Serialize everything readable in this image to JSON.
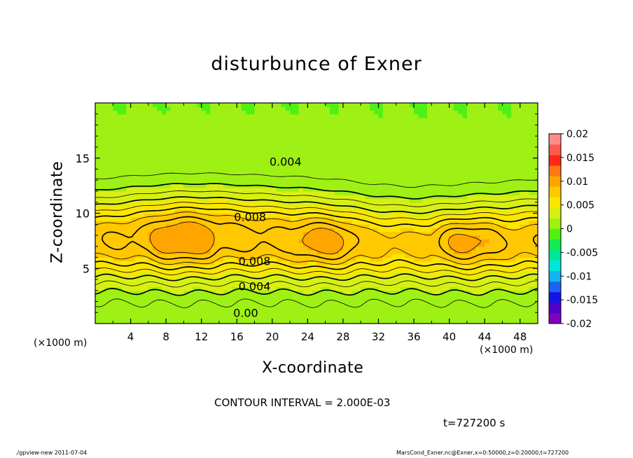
{
  "chart_data": {
    "type": "heatmap",
    "title": "disturbunce of Exner",
    "xlabel": "X-coordinate",
    "ylabel": "Z-coordinate",
    "x_unit_left": "(×1000 m)",
    "x_unit_right": "(×1000 m)",
    "xlim": [
      0,
      50
    ],
    "ylim": [
      0,
      20
    ],
    "x_ticks": [
      4,
      8,
      12,
      16,
      20,
      24,
      28,
      32,
      36,
      40,
      44,
      48
    ],
    "y_ticks": [
      5,
      10,
      15
    ],
    "colorbar": {
      "ticks": [
        "0.02",
        "0.015",
        "0.01",
        "0.005",
        "0",
        "-0.005",
        "-0.01",
        "-0.015",
        "-0.02"
      ],
      "range": [
        -0.02,
        0.02
      ],
      "colors": [
        "#7f00bf",
        "#5000c8",
        "#1414e6",
        "#1a64f0",
        "#12b4f0",
        "#00e6dc",
        "#00e696",
        "#14eb50",
        "#50f014",
        "#9ff014",
        "#d7f014",
        "#fae600",
        "#ffc800",
        "#ffa500",
        "#ff7814",
        "#ff2814",
        "#ff5a50",
        "#ff8c8c"
      ]
    },
    "contour_labels": [
      {
        "text": "0.004",
        "x": 21.5,
        "z": 14.6
      },
      {
        "text": "0.008",
        "x": 17.5,
        "z": 9.6
      },
      {
        "text": "0.008",
        "x": 18,
        "z": 5.6
      },
      {
        "text": "0.004",
        "x": 18,
        "z": 3.3
      },
      {
        "text": "0.00",
        "x": 17,
        "z": 0.9
      }
    ],
    "contour_interval_text": "CONTOUR INTERVAL = 2.000E-03",
    "time_text": "t=727200 s",
    "footer_left": "./gpview-new   2011-07-04",
    "footer_right": "MarsCond_Exner.nc@Exner,x=0:50000,z=0:20000,t=727200"
  }
}
